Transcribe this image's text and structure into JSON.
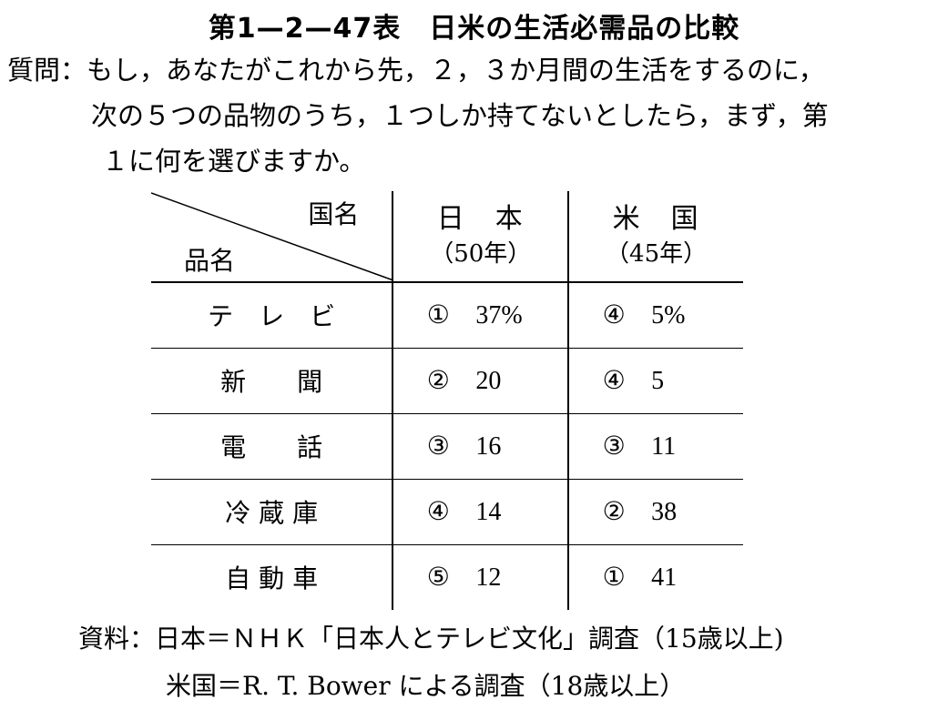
{
  "title": "第1—2—47表　日米の生活必需品の比較",
  "question": {
    "label": "質問：",
    "line1": "もし，あなたがこれから先，２，３か月間の生活をするのに，",
    "line2": "次の５つの品物のうち，１つしか持てないとしたら，まず，第",
    "line3": "１に何を選びますか。"
  },
  "table": {
    "corner_country": "国名",
    "corner_item": "品名",
    "columns": [
      {
        "name": "日　本",
        "year": "（50年）"
      },
      {
        "name": "米　国",
        "year": "（45年）"
      }
    ],
    "rows": [
      {
        "item": "テ　レ　ビ",
        "jp_rank": "①",
        "jp_value": "37%",
        "us_rank": "④",
        "us_value": "5%"
      },
      {
        "item": "新　　聞",
        "jp_rank": "②",
        "jp_value": "20",
        "us_rank": "④",
        "us_value": "5"
      },
      {
        "item": "電　　話",
        "jp_rank": "③",
        "jp_value": "16",
        "us_rank": "③",
        "us_value": "11"
      },
      {
        "item": "冷 蔵 庫",
        "jp_rank": "④",
        "jp_value": "14",
        "us_rank": "②",
        "us_value": "38"
      },
      {
        "item": "自 動 車",
        "jp_rank": "⑤",
        "jp_value": "12",
        "us_rank": "①",
        "us_value": "41"
      }
    ]
  },
  "source": {
    "line1": "資料：日本＝ＮＨＫ「日本人とテレビ文化」調査（15歳以上)",
    "line2": "米国＝R. T. Bower による調査（18歳以上）"
  }
}
